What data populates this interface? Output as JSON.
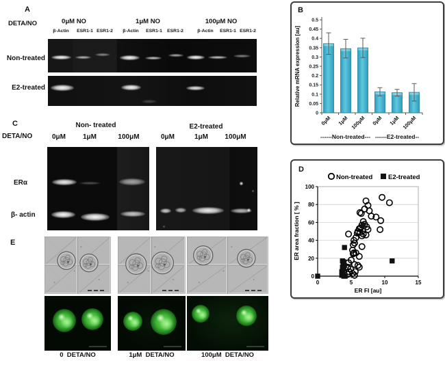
{
  "panelA": {
    "label": "A",
    "row_axis_label": "DETA/NO",
    "groups": [
      {
        "title": "0μM NO",
        "lanes": [
          "β-Actin",
          "ESR1-1",
          "ESR1-2"
        ]
      },
      {
        "title": "1μM NO",
        "lanes": [
          "β-Actin",
          "ESR1-1",
          "ESR1-2"
        ]
      },
      {
        "title": "100μM NO",
        "lanes": [
          "β-Actin",
          "ESR1-1",
          "ESR1-2"
        ]
      }
    ],
    "rows": [
      "Non-treated",
      "E2-treated"
    ]
  },
  "panelB": {
    "label": "B"
  },
  "panelC": {
    "label": "C",
    "row_axis_label": "DETA/NO",
    "group_titles": [
      "Non- treated",
      "E2-treated"
    ],
    "doses": [
      "0μM",
      "1μM",
      "100μM",
      "0μM",
      "1μM",
      "100μM"
    ],
    "row_labels": [
      "ERα",
      "β- actin"
    ]
  },
  "panelD": {
    "label": "D"
  },
  "panelE": {
    "label": "E",
    "captions": [
      "0  DETA/NO",
      "1μM  DETA/NO",
      "100μM  DETA/NO"
    ],
    "bf_cells": [
      [
        [
          0.33,
          0.42,
          13
        ],
        [
          0.67,
          0.46,
          13
        ]
      ],
      [
        [
          0.27,
          0.48,
          15
        ],
        [
          0.66,
          0.46,
          16
        ]
      ],
      [
        [
          0.2,
          0.33,
          14
        ],
        [
          0.73,
          0.38,
          13
        ]
      ]
    ],
    "fl_blobs": [
      [
        [
          0.3,
          0.45,
          17
        ],
        [
          0.72,
          0.42,
          16
        ]
      ],
      [
        [
          0.22,
          0.46,
          14
        ],
        [
          0.68,
          0.47,
          19
        ]
      ],
      [
        [
          0.17,
          0.32,
          13
        ],
        [
          0.73,
          0.36,
          15
        ]
      ]
    ]
  },
  "chart_data": [
    {
      "id": "relative-mrna-expression",
      "type": "bar",
      "categories": [
        "0μM",
        "1μM",
        "100μM",
        "0μM",
        "1μM",
        "100μM"
      ],
      "values": [
        0.372,
        0.345,
        0.349,
        0.113,
        0.108,
        0.11
      ],
      "errors": [
        0.058,
        0.05,
        0.052,
        0.022,
        0.018,
        0.047
      ],
      "group_labels": [
        "------Non-treated---",
        "------E2-treated--"
      ],
      "title": "",
      "xlabel": "",
      "ylabel": "Relative mRNA expression [au]",
      "ylim": [
        0,
        0.5
      ],
      "ytick_step": 0.05,
      "grid": false,
      "bar_color": "#2e9cba",
      "bar_color_light": "#5fc8e0",
      "bar_stroke": "#1d7f9c",
      "error_color": "#595959"
    },
    {
      "id": "er-scatter",
      "type": "scatter",
      "xlabel": "ER FI [au]",
      "ylabel": "ER area fraction [ % ]",
      "xlim": [
        0,
        15
      ],
      "ylim": [
        0,
        100
      ],
      "xticks": [
        0,
        5,
        10,
        15
      ],
      "yticks": [
        0,
        20,
        40,
        60,
        80,
        100
      ],
      "grid": "horizontal",
      "legend_position": "top",
      "series": [
        {
          "name": "Non-treated",
          "marker": "circle",
          "points": [
            [
              9.6,
              88
            ],
            [
              10.7,
              82
            ],
            [
              7.2,
              84
            ],
            [
              7.5,
              79
            ],
            [
              7.0,
              75
            ],
            [
              7.7,
              73
            ],
            [
              6.3,
              71
            ],
            [
              6.5,
              70
            ],
            [
              8.0,
              67
            ],
            [
              8.7,
              66
            ],
            [
              9.4,
              62
            ],
            [
              6.8,
              61
            ],
            [
              7.0,
              58
            ],
            [
              6.6,
              57
            ],
            [
              7.3,
              55
            ],
            [
              6.4,
              54
            ],
            [
              6.2,
              53
            ],
            [
              9.3,
              52
            ],
            [
              7.5,
              52
            ],
            [
              6.0,
              50
            ],
            [
              6.3,
              49
            ],
            [
              5.9,
              48
            ],
            [
              4.6,
              47
            ],
            [
              6.8,
              47
            ],
            [
              7.2,
              46
            ],
            [
              6.6,
              45
            ],
            [
              5.7,
              43
            ],
            [
              5.4,
              40
            ],
            [
              5.5,
              37
            ],
            [
              5.3,
              35
            ],
            [
              6.6,
              33
            ],
            [
              5.2,
              29
            ],
            [
              5.4,
              26
            ],
            [
              5.7,
              26
            ],
            [
              5.3,
              25
            ],
            [
              6.2,
              22
            ],
            [
              5.0,
              18
            ],
            [
              4.6,
              15
            ],
            [
              5.5,
              13
            ],
            [
              6.0,
              12
            ],
            [
              6.2,
              10
            ],
            [
              4.5,
              10
            ],
            [
              4.9,
              8
            ],
            [
              5.6,
              5
            ],
            [
              4.7,
              5
            ],
            [
              5.2,
              3
            ],
            [
              4.5,
              2
            ],
            [
              5.5,
              1
            ]
          ]
        },
        {
          "name": "E2-treated",
          "marker": "square",
          "points": [
            [
              0,
              0
            ],
            [
              4.0,
              32
            ],
            [
              6.8,
              57
            ],
            [
              11.1,
              17
            ],
            [
              3.7,
              17
            ],
            [
              3.9,
              16
            ],
            [
              3.8,
              14
            ],
            [
              4.0,
              12
            ],
            [
              3.7,
              10
            ],
            [
              3.9,
              8
            ],
            [
              3.6,
              5
            ],
            [
              3.7,
              3
            ],
            [
              3.8,
              2
            ],
            [
              3.6,
              1
            ],
            [
              3.9,
              0
            ],
            [
              4.1,
              0
            ]
          ]
        }
      ]
    }
  ],
  "gels": {
    "a_top": {
      "bands": [
        [
          5,
          24,
          29,
          6,
          1
        ],
        [
          40,
          25,
          23,
          4,
          0.72
        ],
        [
          69,
          21,
          22,
          4,
          0.5
        ],
        [
          105,
          24,
          29,
          7,
          1
        ],
        [
          142,
          26,
          24,
          4,
          0.8
        ],
        [
          176,
          22,
          22,
          4,
          0.68
        ],
        [
          203,
          24,
          26,
          6,
          1
        ],
        [
          234,
          25,
          28,
          4,
          0.8
        ],
        [
          271,
          23,
          25,
          4,
          0.5
        ]
      ]
    },
    "a_bottom": {
      "bands": [
        [
          4,
          13,
          34,
          9,
          1
        ],
        [
          107,
          13,
          29,
          8,
          1
        ],
        [
          202,
          15,
          27,
          6,
          0.92
        ],
        [
          137,
          35,
          22,
          5,
          0.22
        ]
      ]
    },
    "c_left": {
      "bands": [
        [
          7,
          47,
          36,
          9,
          0.95
        ],
        [
          47,
          51,
          31,
          4,
          0.28
        ],
        [
          105,
          46,
          38,
          10,
          0.62
        ],
        [
          6,
          94,
          35,
          10,
          1
        ],
        [
          49,
          97,
          42,
          11,
          1
        ],
        [
          107,
          94,
          36,
          8,
          0.78
        ]
      ]
    },
    "c_right": {
      "bands": [
        [
          6,
          90,
          16,
          7,
          0.8
        ],
        [
          28,
          89,
          16,
          7,
          0.7
        ],
        [
          53,
          88,
          46,
          10,
          0.95
        ],
        [
          109,
          90,
          31,
          7,
          0.72
        ],
        [
          122,
          51,
          5,
          5,
          0.95
        ],
        [
          133,
          90,
          5,
          5,
          0.9
        ],
        [
          10,
          115,
          3,
          3,
          0.4
        ],
        [
          140,
          63,
          3,
          3,
          0.5
        ]
      ]
    }
  }
}
